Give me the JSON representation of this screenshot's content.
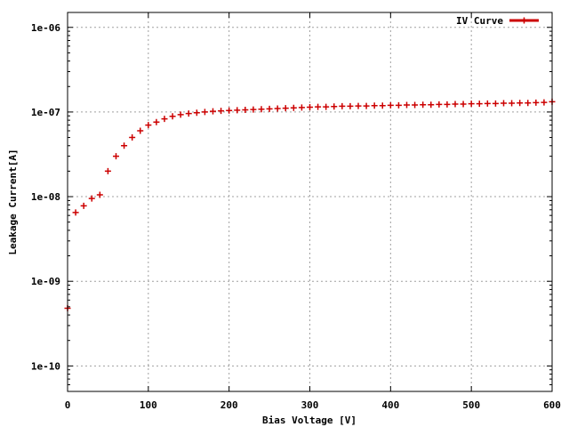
{
  "chart_data": {
    "type": "scatter",
    "title": "",
    "xlabel": "Bias Voltage [V]",
    "ylabel": "Leakage Current[A]",
    "xlim": [
      0,
      600
    ],
    "ylim": [
      5e-11,
      1.5e-06
    ],
    "yscale": "log",
    "grid": true,
    "legend_position": "top-right",
    "x_ticks": [
      0,
      100,
      200,
      300,
      400,
      500,
      600
    ],
    "x_tick_labels": [
      "0",
      "100",
      "200",
      "300",
      "400",
      "500",
      "600"
    ],
    "y_ticks": [
      1e-10,
      1e-09,
      1e-08,
      1e-07,
      1e-06
    ],
    "y_tick_labels": [
      "1e-10",
      "1e-09",
      "1e-08",
      "1e-07",
      "1e-06"
    ],
    "series": [
      {
        "name": "IV Curve",
        "color": "#cc0000",
        "marker": "plus",
        "x": [
          0,
          10,
          20,
          30,
          40,
          50,
          60,
          70,
          80,
          90,
          100,
          110,
          120,
          130,
          140,
          150,
          160,
          170,
          180,
          190,
          200,
          210,
          220,
          230,
          240,
          250,
          260,
          270,
          280,
          290,
          300,
          310,
          320,
          330,
          340,
          350,
          360,
          370,
          380,
          390,
          400,
          410,
          420,
          430,
          440,
          450,
          460,
          470,
          480,
          490,
          500,
          510,
          520,
          530,
          540,
          550,
          560,
          570,
          580,
          590,
          600
        ],
        "y": [
          4.8e-10,
          6.5e-09,
          7.8e-09,
          9.5e-09,
          1.05e-08,
          2e-08,
          3e-08,
          4e-08,
          5e-08,
          6e-08,
          7e-08,
          7.6e-08,
          8.3e-08,
          8.9e-08,
          9.3e-08,
          9.6e-08,
          9.8e-08,
          1e-07,
          1.02e-07,
          1.03e-07,
          1.04e-07,
          1.05e-07,
          1.06e-07,
          1.07e-07,
          1.08e-07,
          1.09e-07,
          1.1e-07,
          1.11e-07,
          1.12e-07,
          1.13e-07,
          1.14e-07,
          1.15e-07,
          1.15e-07,
          1.16e-07,
          1.17e-07,
          1.17e-07,
          1.18e-07,
          1.18e-07,
          1.19e-07,
          1.19e-07,
          1.2e-07,
          1.2e-07,
          1.21e-07,
          1.21e-07,
          1.22e-07,
          1.22e-07,
          1.23e-07,
          1.23e-07,
          1.24e-07,
          1.24e-07,
          1.25e-07,
          1.25e-07,
          1.26e-07,
          1.26e-07,
          1.27e-07,
          1.27e-07,
          1.28e-07,
          1.28e-07,
          1.29e-07,
          1.3e-07,
          1.32e-07
        ]
      }
    ]
  }
}
